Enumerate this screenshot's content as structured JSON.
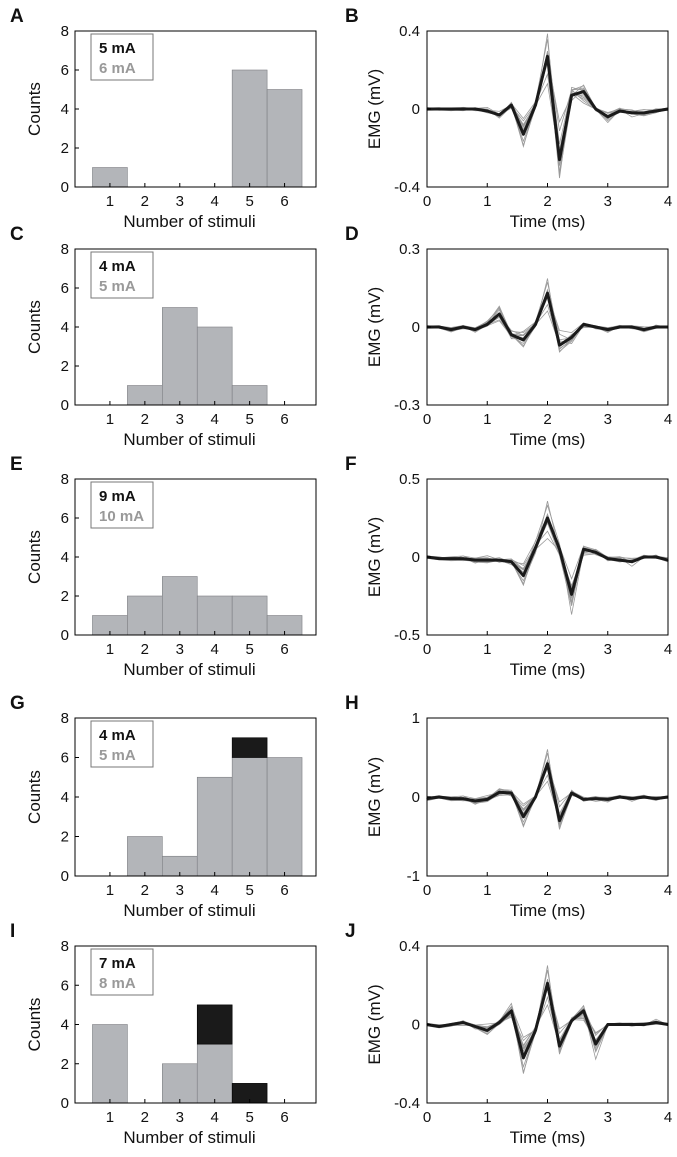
{
  "colors": {
    "gray_bar": "#b3b5b9",
    "black_bar": "#1a1a1a",
    "legend_gray": "#999999",
    "trace_gray": "#9a9a9a",
    "trace_mean": "#1a1a1a"
  },
  "chart_data": [
    {
      "panel": "A",
      "type": "bar",
      "categories": [
        "1",
        "2",
        "3",
        "4",
        "5",
        "6"
      ],
      "series": [
        {
          "name": "6 mA",
          "values": [
            1,
            0,
            0,
            0,
            6,
            5
          ]
        },
        {
          "name": "5 mA",
          "values": [
            0,
            0,
            0,
            0,
            0,
            0
          ]
        }
      ],
      "xlabel": "Number of stimuli",
      "ylabel": "Counts",
      "ylim": [
        0,
        8
      ],
      "yticks": [
        "0",
        "2",
        "4",
        "6",
        "8"
      ],
      "legend": [
        "5 mA",
        "6 mA"
      ],
      "legend_position": "top-left"
    },
    {
      "panel": "B",
      "type": "line",
      "x": [
        0,
        0.2,
        0.4,
        0.6,
        0.8,
        1.0,
        1.2,
        1.4,
        1.6,
        1.8,
        2.0,
        2.2,
        2.4,
        2.6,
        2.8,
        3.0,
        3.2,
        3.4,
        3.6,
        3.8,
        4.0
      ],
      "series": [
        {
          "name": "",
          "values": [
            0,
            0,
            0,
            0,
            0,
            -0.01,
            -0.03,
            0.02,
            -0.13,
            0.02,
            0.27,
            -0.26,
            0.07,
            0.09,
            0,
            -0.04,
            -0.01,
            -0.02,
            -0.02,
            -0.01,
            0
          ]
        }
      ],
      "xlabel": "Time (ms)",
      "ylabel": "EMG (mV)",
      "xlim": [
        0,
        4
      ],
      "ylim": [
        -0.4,
        0.4
      ],
      "xticks": [
        "0",
        "1",
        "2",
        "3",
        "4"
      ],
      "yticks": [
        "-0.4",
        "0",
        "0.4"
      ]
    },
    {
      "panel": "C",
      "type": "bar",
      "categories": [
        "1",
        "2",
        "3",
        "4",
        "5",
        "6"
      ],
      "series": [
        {
          "name": "5 mA",
          "values": [
            0,
            1,
            5,
            4,
            1,
            0
          ]
        },
        {
          "name": "4 mA",
          "values": [
            0,
            0,
            0,
            0,
            0,
            0
          ]
        }
      ],
      "xlabel": "Number of stimuli",
      "ylabel": "Counts",
      "ylim": [
        0,
        8
      ],
      "yticks": [
        "0",
        "2",
        "4",
        "6",
        "8"
      ],
      "legend": [
        "4 mA",
        "5 mA"
      ],
      "legend_position": "top-left"
    },
    {
      "panel": "D",
      "type": "line",
      "x": [
        0,
        0.2,
        0.4,
        0.6,
        0.8,
        1.0,
        1.2,
        1.4,
        1.6,
        1.8,
        2.0,
        2.2,
        2.4,
        2.6,
        2.8,
        3.0,
        3.2,
        3.4,
        3.6,
        3.8,
        4.0
      ],
      "series": [
        {
          "name": "",
          "values": [
            0,
            0,
            -0.01,
            0,
            -0.01,
            0.01,
            0.05,
            -0.03,
            -0.05,
            0.01,
            0.13,
            -0.07,
            -0.04,
            0.01,
            0,
            -0.01,
            0,
            0,
            -0.01,
            0,
            0
          ]
        }
      ],
      "xlabel": "Time (ms)",
      "ylabel": "EMG (mV)",
      "xlim": [
        0,
        4
      ],
      "ylim": [
        -0.3,
        0.3
      ],
      "xticks": [
        "0",
        "1",
        "2",
        "3",
        "4"
      ],
      "yticks": [
        "-0.3",
        "0",
        "0.3"
      ]
    },
    {
      "panel": "E",
      "type": "bar",
      "categories": [
        "1",
        "2",
        "3",
        "4",
        "5",
        "6"
      ],
      "series": [
        {
          "name": "10 mA",
          "values": [
            1,
            2,
            3,
            2,
            2,
            1
          ]
        },
        {
          "name": "9 mA",
          "values": [
            0,
            0,
            0,
            0,
            0,
            0
          ]
        }
      ],
      "xlabel": "Number of stimuli",
      "ylabel": "Counts",
      "ylim": [
        0,
        8
      ],
      "yticks": [
        "0",
        "2",
        "4",
        "6",
        "8"
      ],
      "legend": [
        "9 mA",
        "10 mA"
      ],
      "legend_position": "top-left"
    },
    {
      "panel": "F",
      "type": "line",
      "x": [
        0,
        0.2,
        0.4,
        0.6,
        0.8,
        1.0,
        1.2,
        1.4,
        1.6,
        1.8,
        2.0,
        2.2,
        2.4,
        2.6,
        2.8,
        3.0,
        3.2,
        3.4,
        3.6,
        3.8,
        4.0
      ],
      "series": [
        {
          "name": "",
          "values": [
            0,
            -0.01,
            -0.01,
            -0.01,
            -0.02,
            -0.02,
            -0.02,
            -0.03,
            -0.12,
            0.06,
            0.25,
            0.05,
            -0.24,
            0.05,
            0.03,
            -0.01,
            -0.02,
            -0.03,
            0,
            0,
            -0.02
          ]
        }
      ],
      "xlabel": "Time (ms)",
      "ylabel": "EMG (mV)",
      "xlim": [
        0,
        4
      ],
      "ylim": [
        -0.5,
        0.5
      ],
      "xticks": [
        "0",
        "1",
        "2",
        "3",
        "4"
      ],
      "yticks": [
        "-0.5",
        "0",
        "0.5"
      ]
    },
    {
      "panel": "G",
      "type": "bar",
      "categories": [
        "1",
        "2",
        "3",
        "4",
        "5",
        "6"
      ],
      "series": [
        {
          "name": "5 mA",
          "values": [
            0,
            2,
            1,
            5,
            6,
            6
          ]
        },
        {
          "name": "4 mA",
          "values": [
            0,
            0,
            0,
            0,
            1,
            0
          ]
        }
      ],
      "xlabel": "Number of stimuli",
      "ylabel": "Counts",
      "ylim": [
        0,
        8
      ],
      "yticks": [
        "0",
        "2",
        "4",
        "6",
        "8"
      ],
      "legend": [
        "4 mA",
        "5 mA"
      ],
      "legend_position": "top-left"
    },
    {
      "panel": "H",
      "type": "line",
      "x": [
        0,
        0.2,
        0.4,
        0.6,
        0.8,
        1.0,
        1.2,
        1.4,
        1.6,
        1.8,
        2.0,
        2.2,
        2.4,
        2.6,
        2.8,
        3.0,
        3.2,
        3.4,
        3.6,
        3.8,
        4.0
      ],
      "series": [
        {
          "name": "",
          "values": [
            -0.02,
            0,
            -0.02,
            -0.02,
            -0.05,
            -0.03,
            0.06,
            0.05,
            -0.25,
            0,
            0.42,
            -0.3,
            0.05,
            -0.03,
            -0.02,
            -0.03,
            0,
            -0.02,
            0,
            -0.02,
            0
          ]
        }
      ],
      "xlabel": "Time (ms)",
      "ylabel": "EMG (mV)",
      "xlim": [
        0,
        4
      ],
      "ylim": [
        -1,
        1
      ],
      "xticks": [
        "0",
        "1",
        "2",
        "3",
        "4"
      ],
      "yticks": [
        "-1",
        "0",
        "1"
      ]
    },
    {
      "panel": "I",
      "type": "bar",
      "categories": [
        "1",
        "2",
        "3",
        "4",
        "5",
        "6"
      ],
      "series": [
        {
          "name": "8 mA",
          "values": [
            4,
            0,
            2,
            3,
            0,
            0
          ]
        },
        {
          "name": "7 mA",
          "values": [
            0,
            0,
            0,
            2,
            1,
            0
          ]
        }
      ],
      "xlabel": "Number of stimuli",
      "ylabel": "Counts",
      "ylim": [
        0,
        8
      ],
      "yticks": [
        "0",
        "2",
        "4",
        "6",
        "8"
      ],
      "legend": [
        "7 mA",
        "8 mA"
      ],
      "legend_position": "top-left"
    },
    {
      "panel": "J",
      "type": "line",
      "x": [
        0,
        0.2,
        0.4,
        0.6,
        0.8,
        1.0,
        1.2,
        1.4,
        1.6,
        1.8,
        2.0,
        2.2,
        2.4,
        2.6,
        2.8,
        3.0,
        3.2,
        3.4,
        3.6,
        3.8,
        4.0
      ],
      "series": [
        {
          "name": "",
          "values": [
            0,
            -0.01,
            0,
            0.01,
            -0.01,
            -0.03,
            0.01,
            0.07,
            -0.17,
            -0.03,
            0.21,
            -0.11,
            0.02,
            0.07,
            -0.1,
            0,
            0,
            0,
            0,
            0.01,
            0
          ]
        }
      ],
      "xlabel": "Time (ms)",
      "ylabel": "EMG (mV)",
      "xlim": [
        0,
        4
      ],
      "ylim": [
        -0.4,
        0.4
      ],
      "xticks": [
        "0",
        "1",
        "2",
        "3",
        "4"
      ],
      "yticks": [
        "-0.4",
        "0",
        "0.4"
      ]
    }
  ]
}
